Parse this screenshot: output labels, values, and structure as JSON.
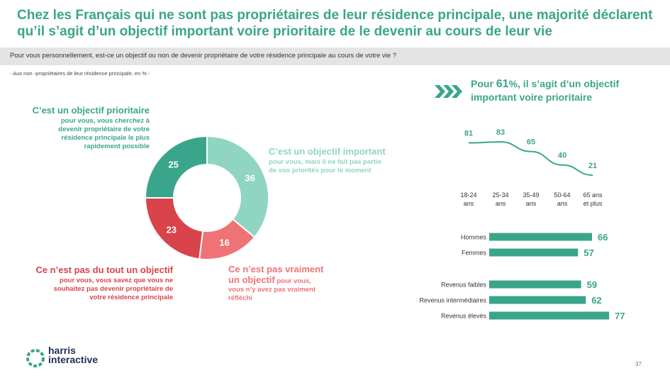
{
  "title": "Chez les Français qui ne sont pas propriétaires de leur résidence principale, une majorité déclarent qu’il s’agit d’un objectif important voire prioritaire de le devenir au cours de leur vie",
  "question": "Pour vous personnellement, est-ce un objectif ou non de devenir propriétaire de votre résidence principale au cours de votre vie ?",
  "base_note": "- Aux non -propriétaires de leur résidence principale, en %      -",
  "callout": {
    "prefix": "Pour ",
    "value": "61",
    "unit": "%",
    "suffix": ", il s’agit d’un objectif important voire prioritaire"
  },
  "colors": {
    "prioritaire": "#3aa58a",
    "important": "#8fd5c1",
    "pas_vraiment": "#ef7376",
    "pas_du_tout": "#d9434b",
    "accent": "#3aa58a",
    "dark": "#1f2d55"
  },
  "chart_data": [
    {
      "type": "pie",
      "donut": true,
      "slices": [
        {
          "key": "important",
          "value": 36,
          "label": "C’est un objectif important",
          "sub": [
            "pour vous, mais il ne fait pas partie",
            "de vos priorités pour le moment"
          ],
          "color": "#8fd5c1"
        },
        {
          "key": "pas_vraiment",
          "value": 16,
          "label": "Ce n’est pas vraiment",
          "label2": "un objectif",
          "sub": [
            "pour vous,",
            "vous n’y avez pas vraiment",
            "réfléchi"
          ],
          "color": "#ef7376"
        },
        {
          "key": "pas_du_tout",
          "value": 23,
          "label": "Ce n’est pas du tout un objectif",
          "sub": [
            "pour vous, vous savez que vous ne",
            "souhaitez pas devenir propriétaire de",
            "votre résidence principale"
          ],
          "color": "#d9434b"
        },
        {
          "key": "prioritaire",
          "value": 25,
          "label": "C’est un objectif prioritaire",
          "sub": [
            "pour vous, vous cherchez à",
            "devenir propriétaire de votre",
            "résidence principale le plus",
            "rapidement possible"
          ],
          "color": "#3aa58a"
        }
      ]
    },
    {
      "type": "line",
      "categories": [
        [
          "18-24",
          "ans"
        ],
        [
          "25-34",
          "ans"
        ],
        [
          "35-49",
          "ans"
        ],
        [
          "50-64",
          "ans"
        ],
        [
          "65 ans",
          "et plus"
        ]
      ],
      "values": [
        81,
        83,
        65,
        40,
        21
      ],
      "color": "#3aa58a"
    },
    {
      "type": "bar",
      "orientation": "horizontal",
      "groups": [
        {
          "categories": [
            "Hommes",
            "Femmes"
          ],
          "values": [
            66,
            57
          ]
        },
        {
          "categories": [
            "Revenus faibles",
            "Revenus intermédiaires",
            "Revenus élevés"
          ],
          "values": [
            59,
            62,
            77
          ]
        }
      ],
      "color": "#3aa58a"
    }
  ],
  "logo": {
    "line1": "harris",
    "line2": "interactive"
  },
  "page_number": "37"
}
